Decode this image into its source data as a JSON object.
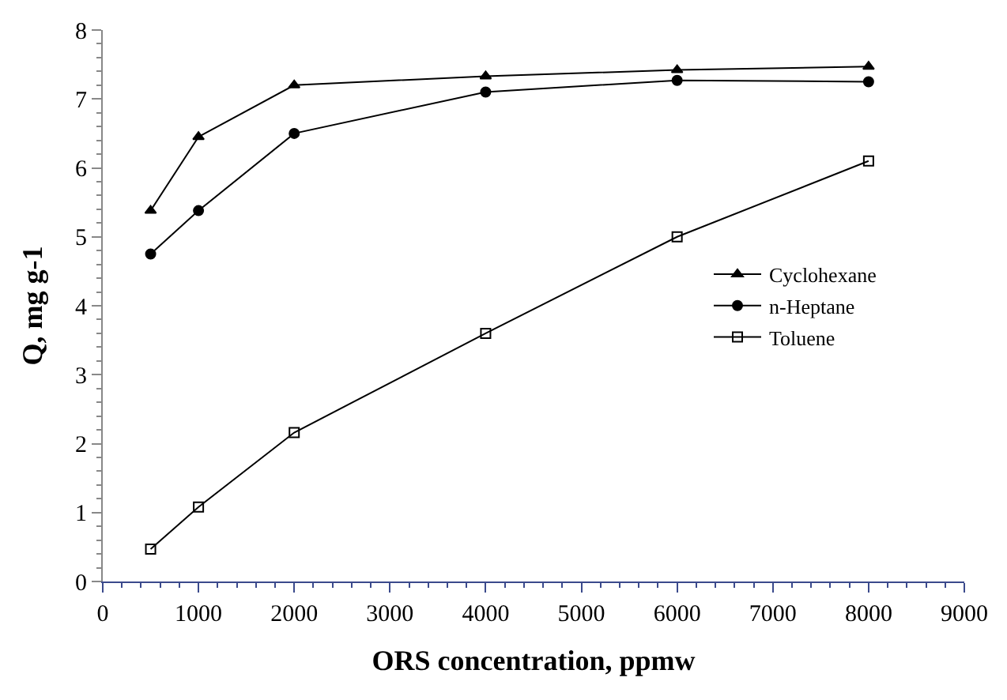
{
  "chart_data": {
    "type": "line",
    "xlabel": "ORS concentration, ppmw",
    "ylabel": "Q, mg g-1",
    "x": [
      500,
      1000,
      2000,
      4000,
      6000,
      8000
    ],
    "series": [
      {
        "name": "Cyclohexane",
        "color": "#000000",
        "marker": "triangle",
        "values": [
          5.38,
          6.45,
          7.2,
          7.33,
          7.42,
          7.47
        ]
      },
      {
        "name": "n-Heptane",
        "color": "#000000",
        "marker": "circle",
        "values": [
          4.75,
          5.38,
          6.5,
          7.1,
          7.27,
          7.25
        ]
      },
      {
        "name": "Toluene",
        "color": "#000000",
        "marker": "square",
        "values": [
          0.47,
          1.08,
          2.16,
          3.6,
          5.0,
          6.1
        ]
      }
    ],
    "xlim": [
      0,
      9000
    ],
    "xticks": [
      0,
      1000,
      2000,
      3000,
      4000,
      5000,
      6000,
      7000,
      8000,
      9000
    ],
    "ylim": [
      0,
      8
    ],
    "yticks": [
      0,
      1,
      2,
      3,
      4,
      5,
      6,
      7,
      8
    ],
    "legend": "right",
    "line_style": "solid"
  }
}
